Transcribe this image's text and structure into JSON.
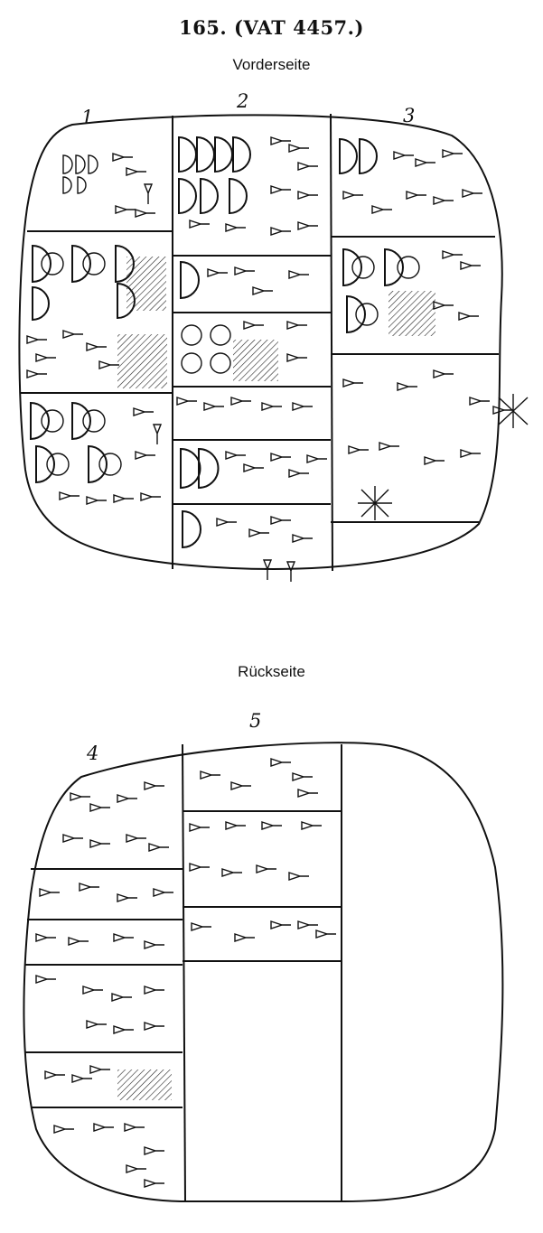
{
  "header": {
    "title": "165.   (VAT 4457.)",
    "obverse_label": "Vorderseite",
    "reverse_label": "Rückseite"
  },
  "obverse": {
    "column_numbers": [
      "1",
      "2",
      "3"
    ]
  },
  "reverse": {
    "column_numbers": [
      "4",
      "5"
    ]
  },
  "icons": {
    "semicircle": "semicircle-numeral-icon",
    "circle": "circle-numeral-icon",
    "wedge": "cuneiform-wedge-icon",
    "hatch": "damaged-area-hatching"
  }
}
